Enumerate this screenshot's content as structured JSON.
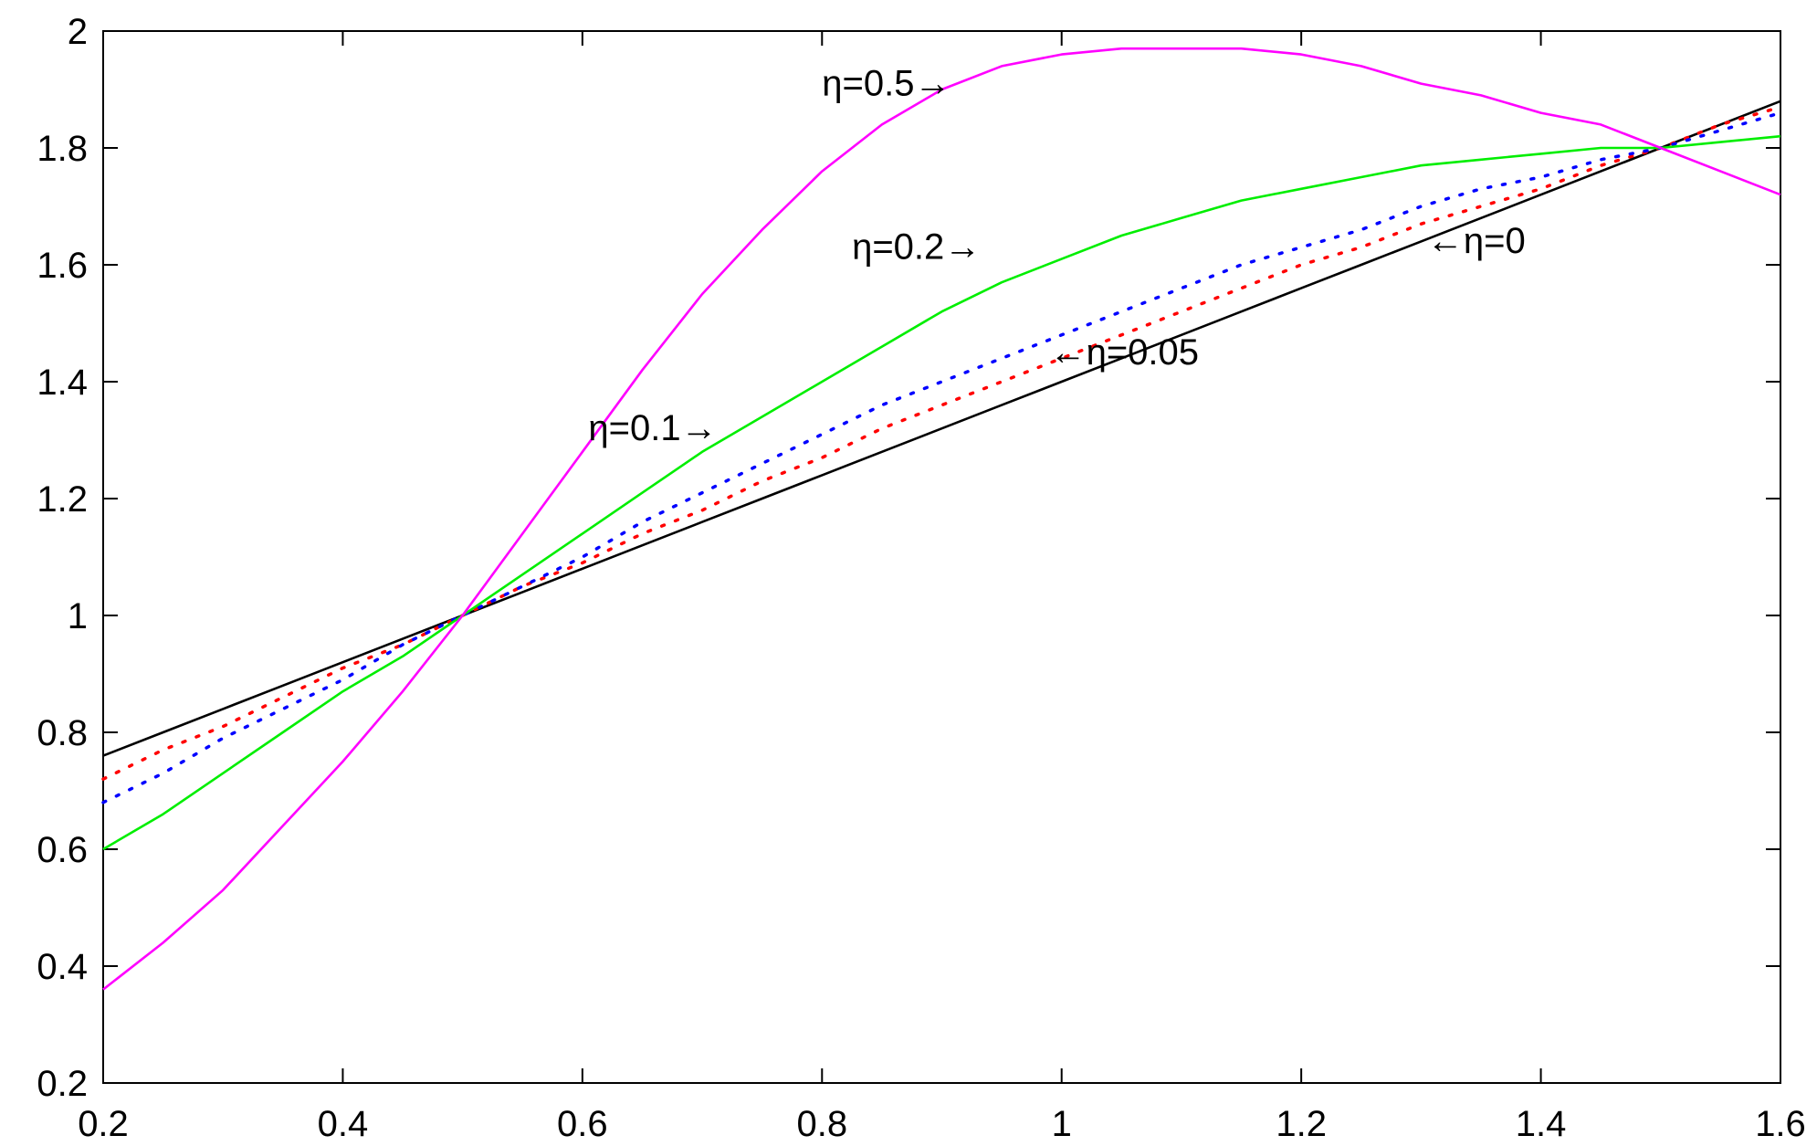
{
  "chart_data": {
    "type": "line",
    "title": "",
    "xlabel": "",
    "ylabel": "",
    "xlim": [
      0.2,
      1.6
    ],
    "ylim": [
      0.2,
      2.0
    ],
    "x_ticks": [
      0.2,
      0.4,
      0.6,
      0.8,
      1.0,
      1.2,
      1.4,
      1.6
    ],
    "x_tick_labels": [
      "0.2",
      "0.4",
      "0.6",
      "0.8",
      "1",
      "1.2",
      "1.4",
      "1.6"
    ],
    "y_ticks": [
      0.2,
      0.4,
      0.6,
      0.8,
      1.0,
      1.2,
      1.4,
      1.6,
      1.8,
      2.0
    ],
    "y_tick_labels": [
      "0.2",
      "0.4",
      "0.6",
      "0.8",
      "1",
      "1.2",
      "1.4",
      "1.6",
      "1.8",
      "2"
    ],
    "grid": false,
    "legend": "none",
    "x": [
      0.2,
      0.25,
      0.3,
      0.35,
      0.4,
      0.45,
      0.5,
      0.55,
      0.6,
      0.65,
      0.7,
      0.75,
      0.8,
      0.85,
      0.9,
      0.95,
      1.0,
      1.05,
      1.1,
      1.15,
      1.2,
      1.25,
      1.3,
      1.35,
      1.4,
      1.45,
      1.5,
      1.55,
      1.6
    ],
    "series": [
      {
        "label": "η=0",
        "color": "#000000",
        "style": "solid",
        "values": [
          0.76,
          0.8,
          0.84,
          0.88,
          0.92,
          0.96,
          1.0,
          1.04,
          1.08,
          1.12,
          1.16,
          1.2,
          1.24,
          1.28,
          1.32,
          1.36,
          1.4,
          1.44,
          1.48,
          1.52,
          1.56,
          1.6,
          1.64,
          1.68,
          1.72,
          1.76,
          1.8,
          1.84,
          1.88
        ]
      },
      {
        "label": "η=0.05",
        "color": "#ff0000",
        "style": "dotted",
        "values": [
          0.72,
          0.77,
          0.81,
          0.86,
          0.91,
          0.95,
          1.0,
          1.05,
          1.09,
          1.14,
          1.18,
          1.23,
          1.27,
          1.32,
          1.36,
          1.4,
          1.44,
          1.48,
          1.52,
          1.56,
          1.6,
          1.63,
          1.67,
          1.7,
          1.73,
          1.77,
          1.8,
          1.84,
          1.87
        ]
      },
      {
        "label": "η=0.1",
        "color": "#0000ff",
        "style": "dotted",
        "values": [
          0.68,
          0.73,
          0.79,
          0.84,
          0.89,
          0.95,
          1.0,
          1.05,
          1.1,
          1.16,
          1.21,
          1.26,
          1.31,
          1.36,
          1.4,
          1.44,
          1.48,
          1.52,
          1.56,
          1.6,
          1.63,
          1.66,
          1.7,
          1.73,
          1.75,
          1.78,
          1.8,
          1.83,
          1.86
        ]
      },
      {
        "label": "η=0.2",
        "color": "#00ee00",
        "style": "solid",
        "values": [
          0.6,
          0.66,
          0.73,
          0.8,
          0.87,
          0.93,
          1.0,
          1.07,
          1.14,
          1.21,
          1.28,
          1.34,
          1.4,
          1.46,
          1.52,
          1.57,
          1.61,
          1.65,
          1.68,
          1.71,
          1.73,
          1.75,
          1.77,
          1.78,
          1.79,
          1.8,
          1.8,
          1.81,
          1.82
        ]
      },
      {
        "label": "η=0.5",
        "color": "#ff00ff",
        "style": "solid",
        "values": [
          0.36,
          0.44,
          0.53,
          0.64,
          0.75,
          0.87,
          1.0,
          1.14,
          1.28,
          1.42,
          1.55,
          1.66,
          1.76,
          1.84,
          1.9,
          1.94,
          1.96,
          1.97,
          1.97,
          1.97,
          1.96,
          1.94,
          1.91,
          1.89,
          1.86,
          1.84,
          1.8,
          1.76,
          1.72
        ]
      }
    ],
    "annotations": [
      {
        "text": "η=0.5→",
        "x": 0.8,
        "y": 1.89,
        "anchor": "start"
      },
      {
        "text": "η=0.2→",
        "x": 0.825,
        "y": 1.61,
        "anchor": "start"
      },
      {
        "text": "←η=0",
        "x": 1.305,
        "y": 1.62,
        "anchor": "start"
      },
      {
        "text": "←η=0.05",
        "x": 0.99,
        "y": 1.43,
        "anchor": "start"
      },
      {
        "text": "η=0.1→",
        "x": 0.605,
        "y": 1.3,
        "anchor": "start"
      }
    ]
  }
}
